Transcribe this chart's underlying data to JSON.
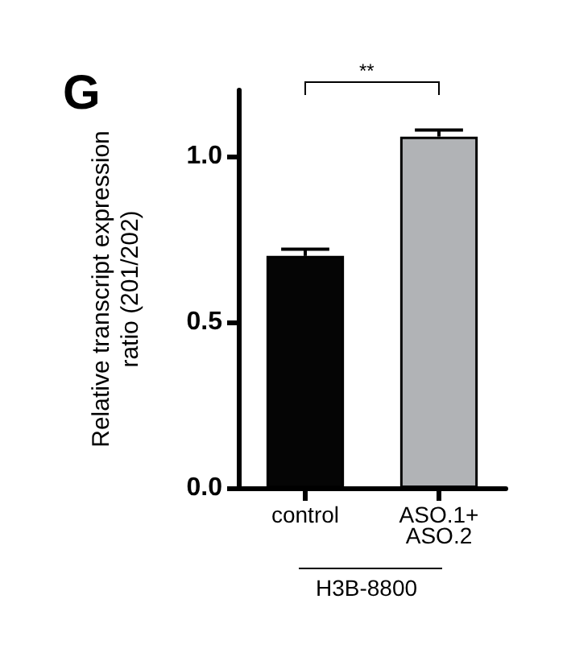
{
  "chart_data": {
    "type": "bar",
    "title": "G",
    "ylabel": "Relative transcript expression\nratio (201/202)",
    "categories": [
      "control",
      "ASO.1+\nASO.2"
    ],
    "values": [
      0.7,
      1.06
    ],
    "colors": [
      "#050505",
      "#b1b3b6"
    ],
    "errors": [
      [
        0.7,
        0.72
      ],
      [
        1.06,
        1.08
      ]
    ],
    "ylim": [
      0,
      1.2
    ],
    "yticks": [
      {
        "value": 0,
        "label": "0.0"
      },
      {
        "value": 0.5,
        "label": "0.5"
      },
      {
        "value": 1.0,
        "label": "1.0"
      }
    ],
    "annotations": [
      "**",
      "H3B-8800"
    ]
  }
}
